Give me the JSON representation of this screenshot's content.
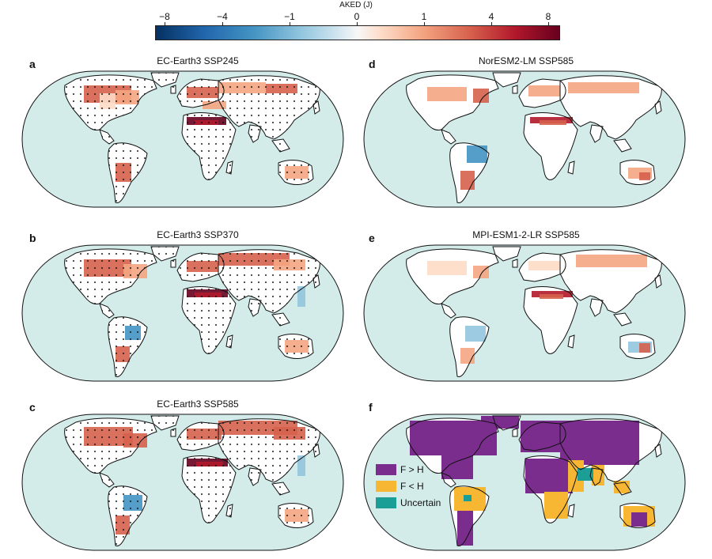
{
  "colorbar": {
    "title": "AKED (J)",
    "ticks": [
      "−8",
      "−4",
      "−1",
      "0",
      "1",
      "4",
      "8"
    ],
    "colors": [
      "#053061",
      "#2166ac",
      "#4393c3",
      "#92c5de",
      "#d1e5f0",
      "#f7f7f7",
      "#fddbc7",
      "#f4a582",
      "#d6604d",
      "#b2182b",
      "#67001f"
    ]
  },
  "panels": [
    {
      "id": "a",
      "letter": "a",
      "title": "EC-Earth3 SSP245",
      "scheme": "diverging"
    },
    {
      "id": "b",
      "letter": "b",
      "title": "EC-Earth3 SSP370",
      "scheme": "diverging"
    },
    {
      "id": "c",
      "letter": "c",
      "title": "EC-Earth3 SSP585",
      "scheme": "diverging"
    },
    {
      "id": "d",
      "letter": "d",
      "title": "NorESM2-LM SSP585",
      "scheme": "diverging"
    },
    {
      "id": "e",
      "letter": "e",
      "title": "MPI-ESM1-2-LR SSP585",
      "scheme": "diverging"
    },
    {
      "id": "f",
      "letter": "f",
      "title": "",
      "scheme": "categorical"
    }
  ],
  "legend": [
    {
      "label": "F > H",
      "color": "#7b2d8e"
    },
    {
      "label": "F < H",
      "color": "#f7b733"
    },
    {
      "label": "Uncertain",
      "color": "#1a9e96"
    }
  ],
  "colors": {
    "ocean": "#d3ecea",
    "outline": "#111111"
  }
}
